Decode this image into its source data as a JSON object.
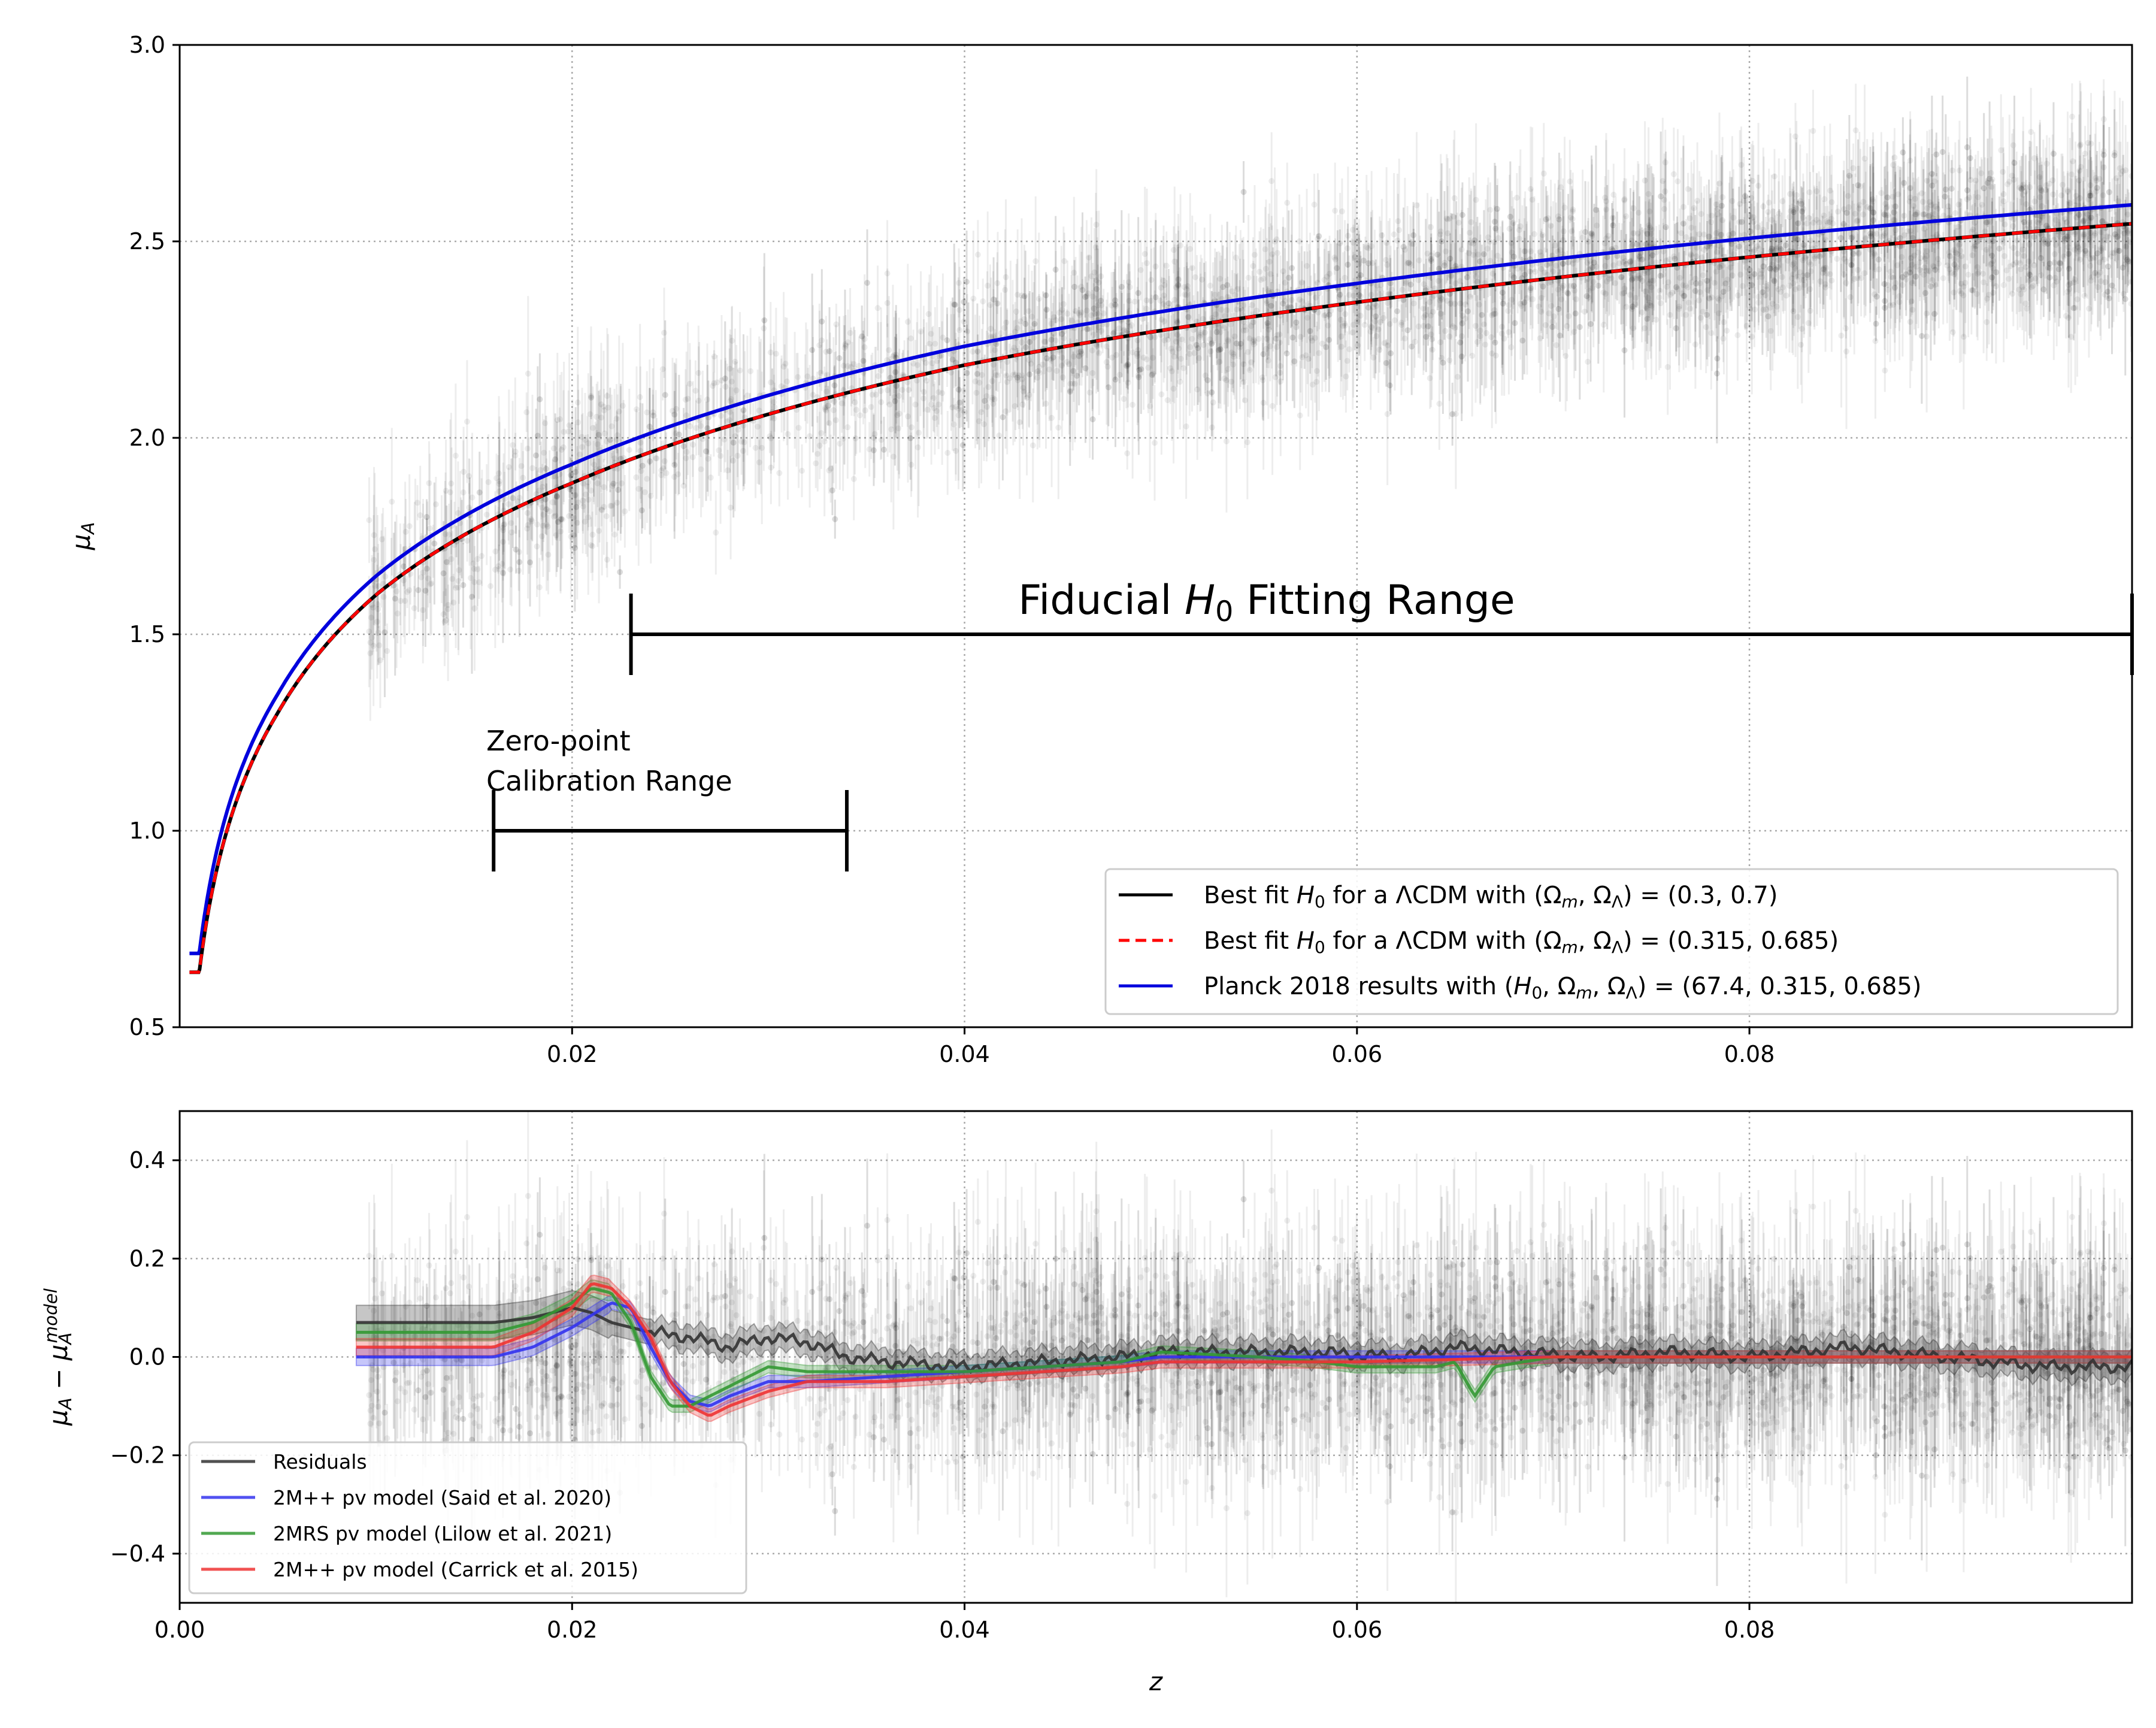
{
  "chart_data": [
    {
      "type": "scatter",
      "title": "",
      "xlabel": "",
      "ylabel": "μ_A",
      "xlim": [
        0.0,
        0.0995
      ],
      "ylim": [
        0.5,
        3.0
      ],
      "xticks": [
        "0.02",
        "0.04",
        "0.06",
        "0.08"
      ],
      "yticks": [
        "0.5",
        "1.0",
        "1.5",
        "2.0",
        "2.5",
        "3.0"
      ],
      "grid": true,
      "legend_position": "lower-right",
      "colors": {
        "best_fit_1": "#000000",
        "best_fit_2": "#ff0000",
        "planck": "#0000dd",
        "points": "#000000"
      },
      "series": [
        {
          "name": "Best fit H0 for a ΛCDM with (Ωm, ΩΛ) = (0.3, 0.7)",
          "style": "solid",
          "color": "#000000",
          "model": "log-distance",
          "H0_offset_mag": 0.0
        },
        {
          "name": "Best fit H0 for a ΛCDM with (Ωm, ΩΛ) = (0.315, 0.685)",
          "style": "dashed",
          "color": "#ff0000",
          "model": "log-distance",
          "H0_offset_mag": 0.0
        },
        {
          "name": "Planck 2018 results with (H0, Ωm, ΩΛ) = (67.4, 0.315, 0.685)",
          "style": "solid",
          "color": "#0000dd",
          "model": "log-distance",
          "H0_offset_mag": 0.048
        }
      ],
      "samples": [
        {
          "z": 0.001,
          "mu": 0.64
        },
        {
          "z": 0.005,
          "mu": 1.3
        },
        {
          "z": 0.01,
          "mu": 1.6
        },
        {
          "z": 0.02,
          "mu": 1.885
        },
        {
          "z": 0.03,
          "mu": 2.06
        },
        {
          "z": 0.04,
          "mu": 2.185
        },
        {
          "z": 0.06,
          "mu": 2.345
        },
        {
          "z": 0.08,
          "mu": 2.46
        },
        {
          "z": 0.0995,
          "mu": 2.545
        }
      ],
      "annotations": [
        {
          "text_parts": [
            "Fiducial ",
            "H",
            "0",
            " Fitting Range"
          ],
          "range": [
            0.023,
            0.0995
          ],
          "y": 1.5
        },
        {
          "text_lines": [
            "Zero-point",
            "Calibration Range"
          ],
          "range": [
            0.016,
            0.034
          ],
          "y": 1.0
        }
      ],
      "scatter": {
        "z_range": [
          0.009,
          0.0995
        ],
        "n_points": 3200,
        "scatter_sigma": 0.1,
        "error_range": [
          0.04,
          0.2
        ]
      }
    },
    {
      "type": "line",
      "title": "",
      "xlabel": "z",
      "ylabel": "μ_A − μ_A^model",
      "xlim": [
        0.0,
        0.0995
      ],
      "ylim": [
        -0.5,
        0.5
      ],
      "xticks": [
        "0.00",
        "0.02",
        "0.04",
        "0.06",
        "0.08"
      ],
      "yticks": [
        "−0.4",
        "−0.2",
        "0.0",
        "0.2",
        "0.4"
      ],
      "grid": true,
      "legend_position": "lower-left",
      "series": [
        {
          "name": "Residuals",
          "color": "#333333",
          "x": [
            0.009,
            0.016,
            0.018,
            0.02,
            0.021,
            0.022,
            0.024,
            0.026,
            0.028,
            0.03,
            0.032,
            0.034,
            0.036,
            0.04,
            0.044,
            0.048,
            0.05,
            0.054,
            0.058,
            0.062,
            0.065,
            0.068,
            0.072,
            0.076,
            0.08,
            0.085,
            0.09,
            0.095,
            0.0995
          ],
          "y": [
            0.07,
            0.07,
            0.08,
            0.1,
            0.09,
            0.07,
            0.05,
            0.04,
            0.02,
            0.04,
            0.03,
            0.0,
            -0.01,
            -0.02,
            -0.01,
            0.0,
            0.01,
            0.01,
            0.01,
            0.0,
            0.02,
            0.01,
            0.0,
            0.01,
            0.0,
            0.02,
            0.0,
            -0.02,
            -0.02
          ]
        },
        {
          "name": "2M++ pv model (Said et al. 2020)",
          "color": "#3333ee",
          "x": [
            0.009,
            0.016,
            0.018,
            0.02,
            0.022,
            0.023,
            0.024,
            0.025,
            0.026,
            0.027,
            0.028,
            0.03,
            0.032,
            0.036,
            0.04,
            0.044,
            0.048,
            0.05,
            0.06,
            0.07,
            0.08,
            0.09,
            0.0995
          ],
          "y": [
            0.0,
            0.0,
            0.02,
            0.06,
            0.11,
            0.1,
            0.02,
            -0.05,
            -0.09,
            -0.1,
            -0.08,
            -0.05,
            -0.05,
            -0.04,
            -0.03,
            -0.02,
            -0.01,
            0.0,
            0.0,
            0.0,
            0.0,
            0.0,
            0.0
          ]
        },
        {
          "name": "2MRS pv model (Lilow et al. 2021)",
          "color": "#339933",
          "x": [
            0.009,
            0.016,
            0.018,
            0.02,
            0.021,
            0.022,
            0.023,
            0.024,
            0.025,
            0.026,
            0.028,
            0.03,
            0.032,
            0.036,
            0.04,
            0.044,
            0.048,
            0.05,
            0.055,
            0.058,
            0.06,
            0.064,
            0.065,
            0.066,
            0.067,
            0.07,
            0.08,
            0.09,
            0.0995
          ],
          "y": [
            0.05,
            0.05,
            0.07,
            0.11,
            0.14,
            0.13,
            0.07,
            -0.04,
            -0.1,
            -0.1,
            -0.06,
            -0.02,
            -0.03,
            -0.03,
            -0.03,
            -0.02,
            -0.01,
            0.01,
            0.0,
            -0.01,
            -0.02,
            -0.02,
            -0.01,
            -0.08,
            -0.02,
            0.0,
            0.0,
            0.0,
            0.0
          ]
        },
        {
          "name": "2M++ pv model (Carrick et al. 2015)",
          "color": "#ee3333",
          "x": [
            0.009,
            0.016,
            0.018,
            0.02,
            0.021,
            0.022,
            0.023,
            0.024,
            0.025,
            0.026,
            0.027,
            0.028,
            0.03,
            0.032,
            0.036,
            0.04,
            0.044,
            0.048,
            0.05,
            0.06,
            0.07,
            0.08,
            0.09,
            0.0995
          ],
          "y": [
            0.02,
            0.02,
            0.05,
            0.1,
            0.15,
            0.14,
            0.1,
            0.04,
            -0.05,
            -0.1,
            -0.12,
            -0.1,
            -0.07,
            -0.05,
            -0.05,
            -0.04,
            -0.03,
            -0.02,
            -0.01,
            -0.01,
            0.0,
            0.0,
            0.0,
            0.0
          ]
        }
      ],
      "scatter": {
        "z_range": [
          0.009,
          0.0995
        ],
        "n_points": 3200,
        "scatter_sigma": 0.1,
        "error_range": [
          0.04,
          0.2
        ]
      }
    }
  ],
  "legend_top": [
    {
      "key": "bf1",
      "parts": [
        "Best fit ",
        "H",
        "0",
        " for a ΛCDM with (",
        "Ω",
        "m",
        ", ",
        "Ω",
        "Λ",
        ") = (0.3, 0.7)"
      ]
    },
    {
      "key": "bf2",
      "parts": [
        "Best fit ",
        "H",
        "0",
        " for a ΛCDM with (",
        "Ω",
        "m",
        ", ",
        "Ω",
        "Λ",
        ") = (0.315, 0.685)"
      ]
    },
    {
      "key": "planck",
      "parts": [
        "Planck 2018 results with (",
        "H",
        "0",
        ", ",
        "Ω",
        "m",
        ", ",
        "Ω",
        "Λ",
        ") = (67.4, 0.315, 0.685)"
      ]
    }
  ]
}
